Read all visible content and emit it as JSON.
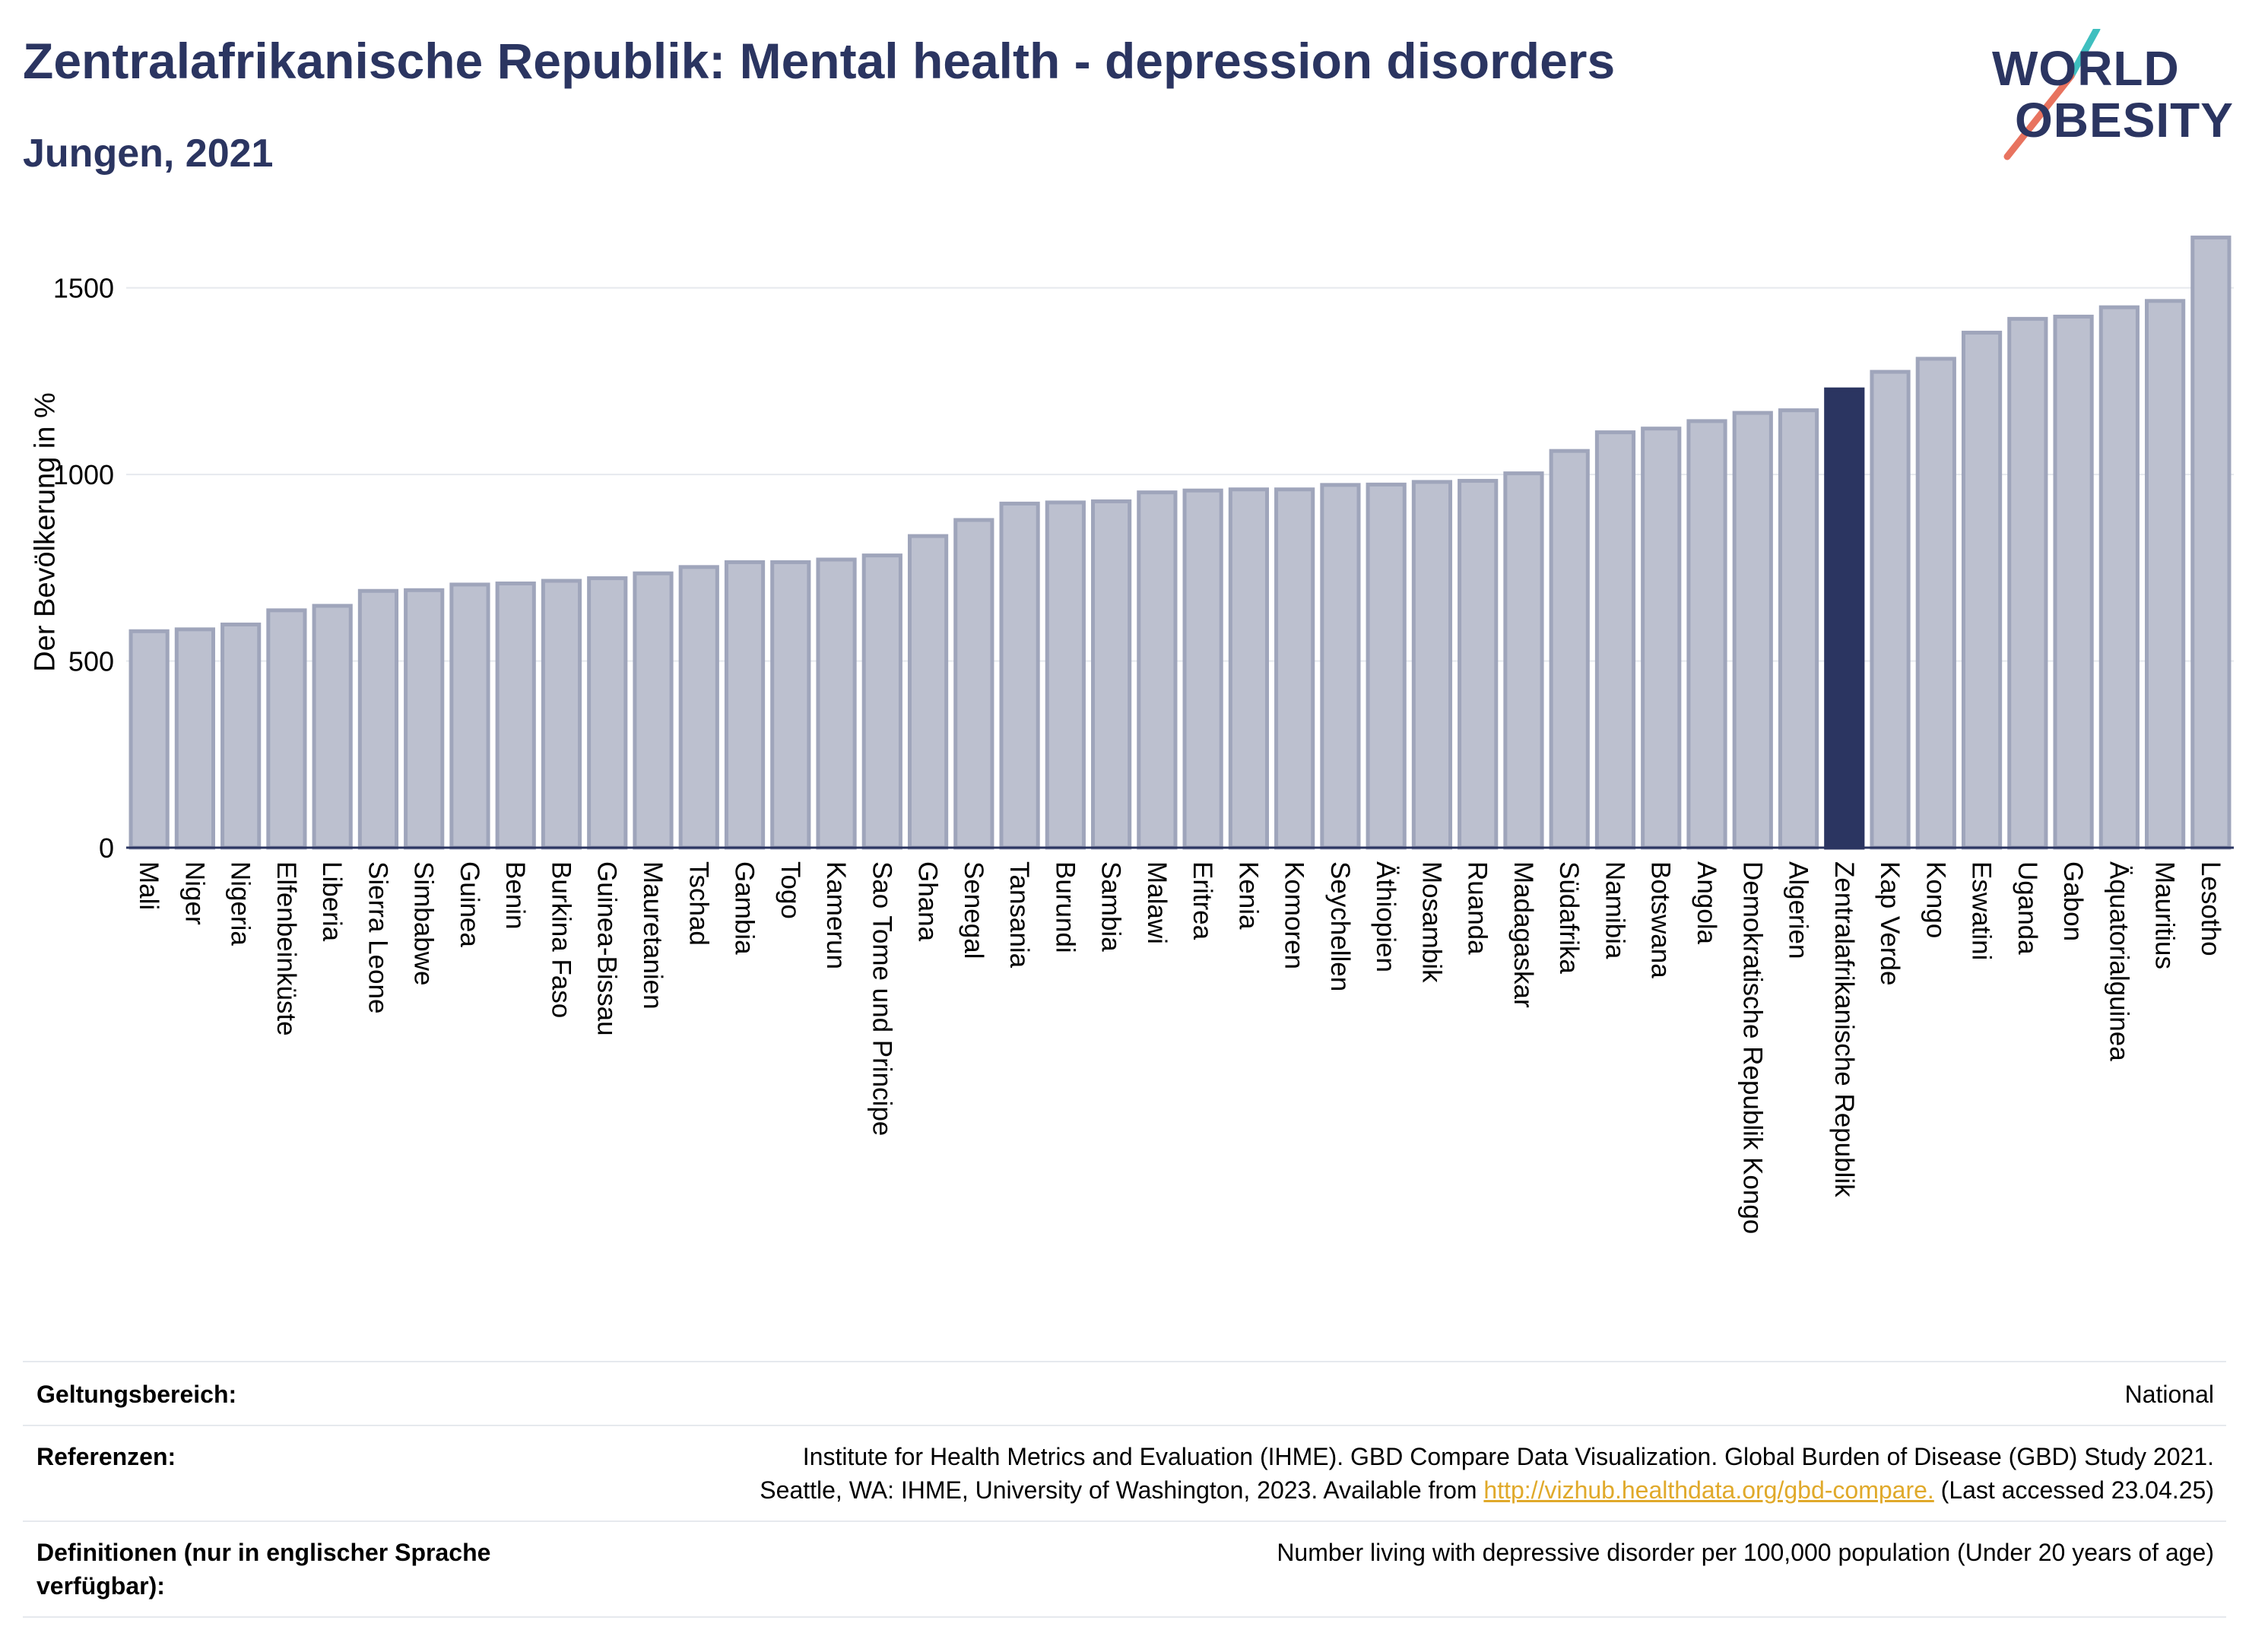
{
  "header": {
    "title": "Zentralafrikanische Republik: Mental health - depression disorders",
    "subtitle": "Jungen, 2021"
  },
  "logo": {
    "line1": "WORLD",
    "line2": "OBESITY",
    "colors": {
      "teal": "#3fbfbf",
      "coral": "#e8735f"
    }
  },
  "colors": {
    "bar": "#bcc0cf",
    "bar_edge": "#9fa5bb",
    "highlight": "#2b3561",
    "grid": "#e6e9ee",
    "axis": "#2b3561"
  },
  "chart_data": {
    "type": "bar",
    "ylabel": "Der Bevölkerung in %",
    "ylim": [
      0,
      1650
    ],
    "yticks": [
      0,
      500,
      1000,
      1500
    ],
    "grid": true,
    "highlight": "Zentralafrikanische Republik",
    "categories": [
      "Mali",
      "Niger",
      "Nigeria",
      "Elfenbeinküste",
      "Liberia",
      "Sierra Leone",
      "Simbabwe",
      "Guinea",
      "Benin",
      "Burkina Faso",
      "Guinea-Bissau",
      "Mauretanien",
      "Tschad",
      "Gambia",
      "Togo",
      "Kamerun",
      "Sao Tome und Principe",
      "Ghana",
      "Senegal",
      "Tansania",
      "Burundi",
      "Sambia",
      "Malawi",
      "Eritrea",
      "Kenia",
      "Komoren",
      "Seychellen",
      "Äthiopien",
      "Mosambik",
      "Ruanda",
      "Madagaskar",
      "Südafrika",
      "Namibia",
      "Botswana",
      "Angola",
      "Demokratische Republik Kongo",
      "Algerien",
      "Zentralafrikanische Republik",
      "Kap Verde",
      "Kongo",
      "Eswatini",
      "Uganda",
      "Gabon",
      "Äquatorialguinea",
      "Mauritius",
      "Lesotho"
    ],
    "values": [
      580,
      585,
      598,
      636,
      648,
      688,
      690,
      705,
      708,
      715,
      722,
      735,
      752,
      765,
      765,
      772,
      783,
      835,
      878,
      922,
      925,
      928,
      952,
      957,
      960,
      960,
      972,
      973,
      980,
      983,
      1003,
      1063,
      1113,
      1123,
      1143,
      1165,
      1172,
      1228,
      1275,
      1310,
      1380,
      1417,
      1423,
      1448,
      1465,
      1635
    ]
  },
  "footer": {
    "rows": [
      {
        "key": "Geltungsbereich:",
        "value": "National"
      },
      {
        "key": "Referenzen:",
        "value_line1": "Institute for Health Metrics and Evaluation (IHME). GBD Compare Data Visualization. Global Burden of Disease (GBD) Study 2021.",
        "value_line2_pre": "Seattle, WA: IHME, University of Washington, 2023. Available from ",
        "value_link": "http://vizhub.healthdata.org/gbd-compare.",
        "value_line2_post": " (Last accessed 23.04.25)"
      },
      {
        "key_line1": "Definitionen (nur in englischer Sprache",
        "key_line2": "verfügbar):",
        "value": "Number living with depressive disorder per 100,000 population (Under 20 years of age)"
      }
    ]
  }
}
